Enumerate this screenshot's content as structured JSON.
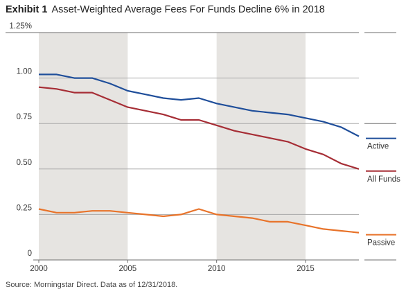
{
  "header": {
    "exhibit_label": "Exhibit 1",
    "title": "Asset-Weighted Average Fees For Funds Decline 6% in 2018"
  },
  "footer": {
    "source": "Source: Morningstar Direct. Data as of 12/31/2018."
  },
  "chart_data": {
    "type": "line",
    "title": "Asset-Weighted Average Fees For Funds Decline 6% in 2018",
    "xlabel": "",
    "ylabel": "",
    "xlim": [
      2000,
      2018
    ],
    "ylim": [
      0,
      1.25
    ],
    "x_ticks": [
      2000,
      2005,
      2010,
      2015
    ],
    "x_tick_labels": [
      "2000",
      "2005",
      "2010",
      "2015"
    ],
    "y_ticks": [
      0,
      0.25,
      0.5,
      0.75,
      1.0,
      1.25
    ],
    "y_tick_labels": [
      "0",
      "0.25",
      "0.50",
      "0.75",
      "1.00",
      "1.25%"
    ],
    "shaded_periods": [
      [
        2000,
        2005
      ],
      [
        2010,
        2015
      ]
    ],
    "legend_position": "right",
    "x": [
      2000,
      2001,
      2002,
      2003,
      2004,
      2005,
      2006,
      2007,
      2008,
      2009,
      2010,
      2011,
      2012,
      2013,
      2014,
      2015,
      2016,
      2017,
      2018
    ],
    "series": [
      {
        "name": "Active",
        "color": "#1f4e9a",
        "values": [
          1.02,
          1.02,
          1.0,
          1.0,
          0.97,
          0.93,
          0.91,
          0.89,
          0.88,
          0.89,
          0.86,
          0.84,
          0.82,
          0.81,
          0.8,
          0.78,
          0.76,
          0.73,
          0.68
        ]
      },
      {
        "name": "All Funds",
        "color": "#a62d35",
        "values": [
          0.95,
          0.94,
          0.92,
          0.92,
          0.88,
          0.84,
          0.82,
          0.8,
          0.77,
          0.77,
          0.74,
          0.71,
          0.69,
          0.67,
          0.65,
          0.61,
          0.58,
          0.53,
          0.5
        ]
      },
      {
        "name": "Passive",
        "color": "#e8732a",
        "values": [
          0.28,
          0.26,
          0.26,
          0.27,
          0.27,
          0.26,
          0.25,
          0.24,
          0.25,
          0.28,
          0.25,
          0.24,
          0.23,
          0.21,
          0.21,
          0.19,
          0.17,
          0.16,
          0.15
        ]
      }
    ]
  }
}
